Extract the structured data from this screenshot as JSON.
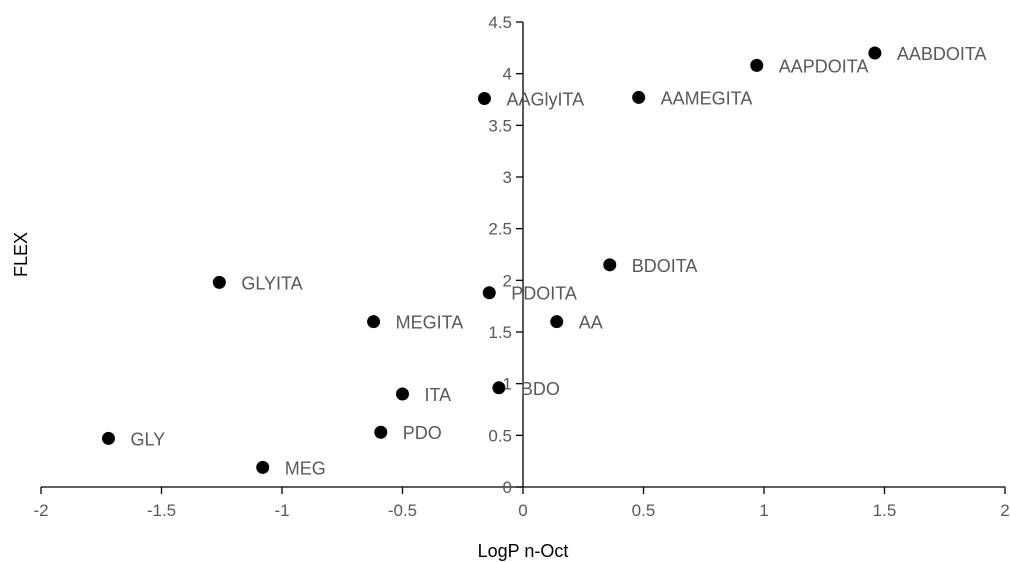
{
  "chart_data": {
    "type": "scatter",
    "title": "",
    "xlabel": "LogP n-Oct",
    "ylabel": "FLEX",
    "xlim": [
      -2,
      2
    ],
    "ylim": [
      0,
      4.5
    ],
    "x_ticks": [
      -2,
      -1.5,
      -1,
      -0.5,
      0,
      0.5,
      1,
      1.5,
      2
    ],
    "y_ticks": [
      0,
      0.5,
      1,
      1.5,
      2,
      2.5,
      3,
      3.5,
      4,
      4.5
    ],
    "x_tick_labels": [
      "-2",
      "-1.5",
      "-1",
      "-0.5",
      "0",
      "0.5",
      "1",
      "1.5",
      "2"
    ],
    "y_tick_labels": [
      "0",
      "0.5",
      "1",
      "1.5",
      "2",
      "2.5",
      "3",
      "3.5",
      "4",
      "4.5"
    ],
    "grid": false,
    "legend": "none",
    "marker_color": "#000000",
    "points": [
      {
        "label": "AABDOITA",
        "x": 1.46,
        "y": 4.2
      },
      {
        "label": "AAPDOITA",
        "x": 0.97,
        "y": 4.08
      },
      {
        "label": "AAGlyITA",
        "x": -0.16,
        "y": 3.76
      },
      {
        "label": "AAMEGITA",
        "x": 0.48,
        "y": 3.77
      },
      {
        "label": "BDOITA",
        "x": 0.36,
        "y": 2.15
      },
      {
        "label": "GLYITA",
        "x": -1.26,
        "y": 1.98
      },
      {
        "label": "PDOITA",
        "x": -0.14,
        "y": 1.88
      },
      {
        "label": "MEGITA",
        "x": -0.62,
        "y": 1.6
      },
      {
        "label": "AA",
        "x": 0.14,
        "y": 1.6
      },
      {
        "label": "ITA",
        "x": -0.5,
        "y": 0.9
      },
      {
        "label": "BDO",
        "x": -0.1,
        "y": 0.96
      },
      {
        "label": "GLY",
        "x": -1.72,
        "y": 0.47
      },
      {
        "label": "PDO",
        "x": -0.59,
        "y": 0.53
      },
      {
        "label": "MEG",
        "x": -1.08,
        "y": 0.19
      }
    ]
  }
}
